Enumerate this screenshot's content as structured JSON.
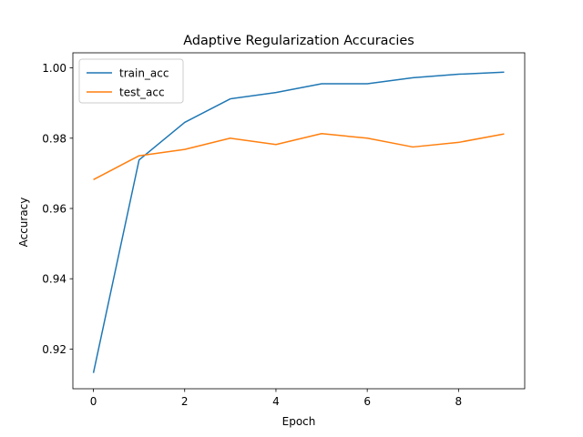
{
  "chart_data": {
    "type": "line",
    "title": "Adaptive Regularization Accuracies",
    "xlabel": "Epoch",
    "ylabel": "Accuracy",
    "xlim": [
      -0.45,
      9.45
    ],
    "ylim": [
      0.9087,
      1.0043
    ],
    "xticks": [
      0,
      2,
      4,
      6,
      8
    ],
    "xtick_labels": [
      "0",
      "2",
      "4",
      "6",
      "8"
    ],
    "yticks": [
      0.92,
      0.94,
      0.96,
      0.98,
      1.0
    ],
    "ytick_labels": [
      "0.92",
      "0.94",
      "0.96",
      "0.98",
      "1.00"
    ],
    "grid": false,
    "legend_position": "top-left",
    "x": [
      0,
      1,
      2,
      3,
      4,
      5,
      6,
      7,
      8,
      9
    ],
    "series": [
      {
        "name": "train_acc",
        "color": "#1f77b4",
        "values": [
          0.9132,
          0.9738,
          0.9845,
          0.9912,
          0.993,
          0.9955,
          0.9955,
          0.9972,
          0.9982,
          0.9988
        ]
      },
      {
        "name": "test_acc",
        "color": "#ff7f0e",
        "values": [
          0.9682,
          0.975,
          0.9768,
          0.98,
          0.9782,
          0.9813,
          0.98,
          0.9775,
          0.9788,
          0.9812
        ]
      }
    ]
  }
}
